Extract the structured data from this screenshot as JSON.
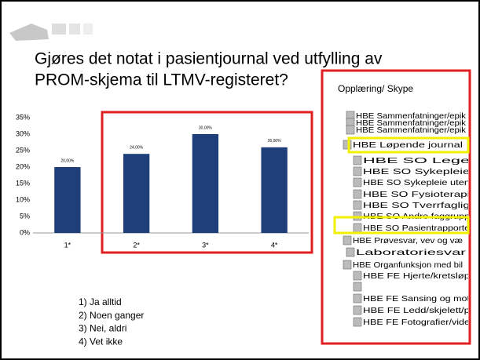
{
  "slide": {
    "title_lines": [
      "Gjøres det notat i pasientjournal ved utfylling av",
      "PROM-skjema til LTMV-registeret?"
    ],
    "options": [
      "1) Ja alltid",
      "2) Noen ganger",
      "3) Nei, aldri",
      "4) Vet ikke"
    ],
    "panel_title": "Opplæring/ Skype",
    "tree": [
      "HBE Sammenfatninger/epik",
      "HBE Sammenfatninger/epik",
      "HBE Sammenfatninger/epik",
      "HBE Løpende journal",
      "HBE SO Lege",
      "HBE SO Sykepleie",
      "HBE SO Sykepleie uten",
      "HBE SO Fysioterapi",
      "HBE SO Tverrfaglig",
      "HBE SO Andre faggrupp",
      "HBE SO Pasientrapporte",
      "HBE Prøvesvar, vev og væ",
      "Laboratoriesvar",
      "HBE Organfunksjon med bil",
      "HBE FE Hjerte/kretsløp",
      "HBE FE Sansing og mot",
      "HBE FE Ledd/skjelett/p",
      "HBE FE Fotografier/vide"
    ]
  },
  "chart_data": {
    "type": "bar",
    "categories": [
      "1*",
      "2*",
      "3*",
      "4*"
    ],
    "values": [
      20,
      24,
      30,
      26
    ],
    "value_labels": [
      "20,00%",
      "24,00%",
      "30,00%",
      "26,00%"
    ],
    "color": "#1f3f7a",
    "ylim": [
      0,
      35
    ],
    "yticks": [
      {
        "value": 0,
        "label": "0%"
      },
      {
        "value": 5,
        "label": "5%"
      },
      {
        "value": 10,
        "label": "10%"
      },
      {
        "value": 15,
        "label": "15%"
      },
      {
        "value": 20,
        "label": "20%"
      },
      {
        "value": 25,
        "label": "25%"
      },
      {
        "value": 30,
        "label": "30%"
      },
      {
        "value": 35,
        "label": "35%"
      }
    ],
    "grid": false
  }
}
